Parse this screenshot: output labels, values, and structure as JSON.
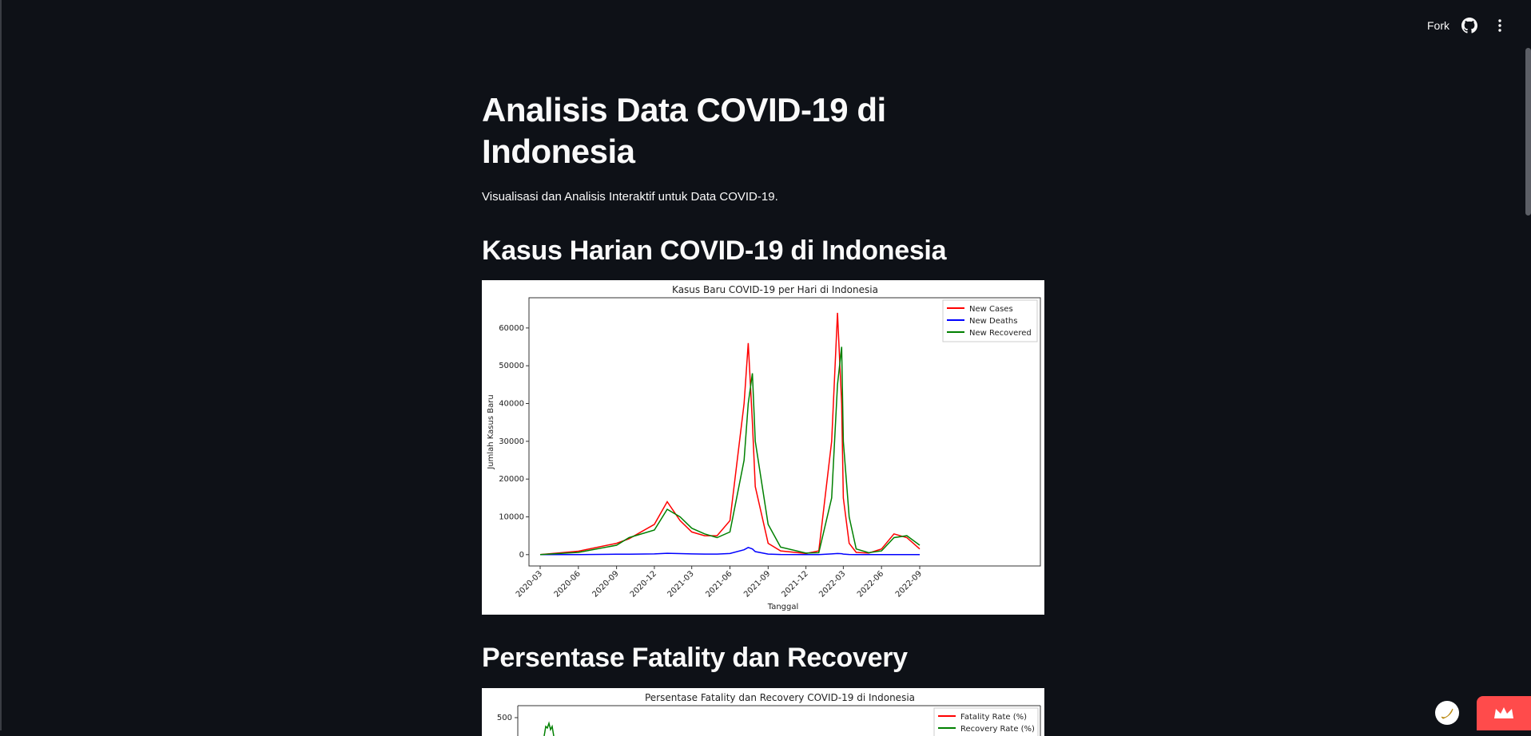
{
  "header": {
    "fork_label": "Fork",
    "github_icon": "github-icon",
    "menu_icon": "vertical-dots-icon"
  },
  "main": {
    "title": "Analisis Data COVID-19 di Indonesia",
    "subtitle": "Visualisasi dan Analisis Interaktif untuk Data COVID-19.",
    "section1_title": "Kasus Harian COVID-19 di Indonesia",
    "section2_title": "Persentase Fatality dan Recovery"
  },
  "chart_data": [
    {
      "type": "line",
      "title": "Kasus Baru COVID-19 per Hari di Indonesia",
      "xlabel": "Tanggal",
      "ylabel": "Jumlah Kasus Baru",
      "x_ticks": [
        "2020-03",
        "2020-06",
        "2020-09",
        "2020-12",
        "2021-03",
        "2021-06",
        "2021-09",
        "2021-12",
        "2022-03",
        "2022-06",
        "2022-09"
      ],
      "y_ticks": [
        0,
        10000,
        20000,
        30000,
        40000,
        50000,
        60000
      ],
      "ylim": [
        -3000,
        68000
      ],
      "legend_position": "top-right",
      "x": [
        "2020-03",
        "2020-06",
        "2020-09",
        "2020-10",
        "2020-12",
        "2021-01",
        "2021-02",
        "2021-03",
        "2021-04",
        "2021-05",
        "2021-06",
        "2021-07-05",
        "2021-07-15",
        "2021-07-25",
        "2021-08",
        "2021-09",
        "2021-10",
        "2021-12",
        "2022-01",
        "2022-02",
        "2022-02-15",
        "2022-02-25",
        "2022-03",
        "2022-03-15",
        "2022-04",
        "2022-05",
        "2022-06",
        "2022-07",
        "2022-08",
        "2022-09"
      ],
      "series": [
        {
          "name": "New Cases",
          "color": "#ff0000",
          "values": [
            0,
            900,
            3000,
            4200,
            8000,
            14000,
            9000,
            6000,
            5000,
            5000,
            9000,
            40000,
            56000,
            35000,
            18000,
            3000,
            1000,
            300,
            1000,
            30000,
            64000,
            40000,
            15000,
            3000,
            600,
            400,
            1500,
            5500,
            4500,
            1500
          ]
        },
        {
          "name": "New Deaths",
          "color": "#0000ff",
          "values": [
            0,
            30,
            100,
            120,
            200,
            350,
            280,
            200,
            150,
            150,
            300,
            1300,
            1900,
            1500,
            800,
            150,
            40,
            10,
            10,
            200,
            300,
            250,
            150,
            50,
            20,
            10,
            15,
            30,
            30,
            20
          ]
        },
        {
          "name": "New Recovered",
          "color": "#008000",
          "values": [
            0,
            600,
            2500,
            4500,
            6500,
            12000,
            10000,
            7000,
            5500,
            4500,
            6000,
            25000,
            40000,
            48000,
            30000,
            8000,
            2000,
            400,
            500,
            15000,
            45000,
            55000,
            30000,
            10000,
            1500,
            500,
            1000,
            4500,
            5000,
            2500
          ]
        }
      ]
    },
    {
      "type": "line",
      "title": "Persentase Fatality dan Recovery COVID-19 di Indonesia",
      "y_ticks": [
        500
      ],
      "legend_position": "top-right",
      "series": [
        {
          "name": "Fatality Rate (%)",
          "color": "#ff0000"
        },
        {
          "name": "Recovery Rate (%)",
          "color": "#008000"
        }
      ]
    }
  ]
}
